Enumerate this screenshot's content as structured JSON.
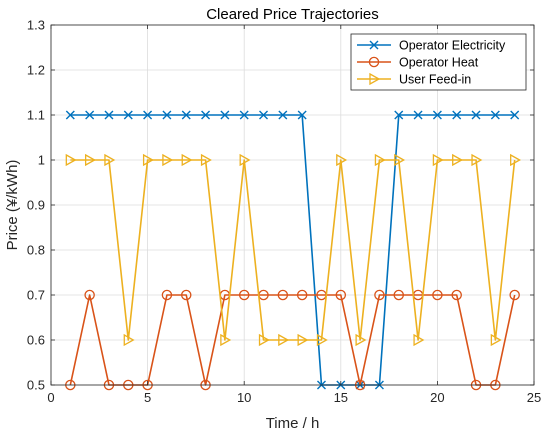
{
  "chart_data": {
    "type": "line",
    "title": "Cleared Price Trajectories",
    "xlabel": "Time / h",
    "ylabel": "Price (¥/kWh)",
    "xlim": [
      0,
      25
    ],
    "ylim": [
      0.5,
      1.3
    ],
    "xticks": [
      0,
      5,
      10,
      15,
      20,
      25
    ],
    "yticks": [
      0.5,
      0.6,
      0.7,
      0.8,
      0.9,
      1,
      1.1,
      1.2,
      1.3
    ],
    "xtick_labels": [
      "0",
      "5",
      "10",
      "15",
      "20",
      "25"
    ],
    "ytick_labels": [
      "0.5",
      "0.6",
      "0.7",
      "0.8",
      "0.9",
      "1",
      "1.1",
      "1.2",
      "1.3"
    ],
    "grid": true,
    "legend_position": "top-right",
    "x": [
      1,
      2,
      3,
      4,
      5,
      6,
      7,
      8,
      9,
      10,
      11,
      12,
      13,
      14,
      15,
      16,
      17,
      18,
      19,
      20,
      21,
      22,
      23,
      24
    ],
    "series": [
      {
        "name": "Operator Electricity",
        "color": "#0072BD",
        "marker": "x",
        "values": [
          1.1,
          1.1,
          1.1,
          1.1,
          1.1,
          1.1,
          1.1,
          1.1,
          1.1,
          1.1,
          1.1,
          1.1,
          1.1,
          0.5,
          0.5,
          0.5,
          0.5,
          1.1,
          1.1,
          1.1,
          1.1,
          1.1,
          1.1,
          1.1
        ]
      },
      {
        "name": "Operator Heat",
        "color": "#D95319",
        "marker": "circle",
        "values": [
          0.5,
          0.7,
          0.5,
          0.5,
          0.5,
          0.7,
          0.7,
          0.5,
          0.7,
          0.7,
          0.7,
          0.7,
          0.7,
          0.7,
          0.7,
          0.5,
          0.7,
          0.7,
          0.7,
          0.7,
          0.7,
          0.5,
          0.5,
          0.7
        ]
      },
      {
        "name": "User Feed-in",
        "color": "#EDB120",
        "marker": "triangle-right",
        "values": [
          1,
          1,
          1,
          0.6,
          1,
          1,
          1,
          1,
          0.6,
          1,
          0.6,
          0.6,
          0.6,
          0.6,
          1,
          0.6,
          1,
          1,
          0.6,
          1,
          1,
          1,
          0.6,
          1
        ]
      }
    ]
  }
}
